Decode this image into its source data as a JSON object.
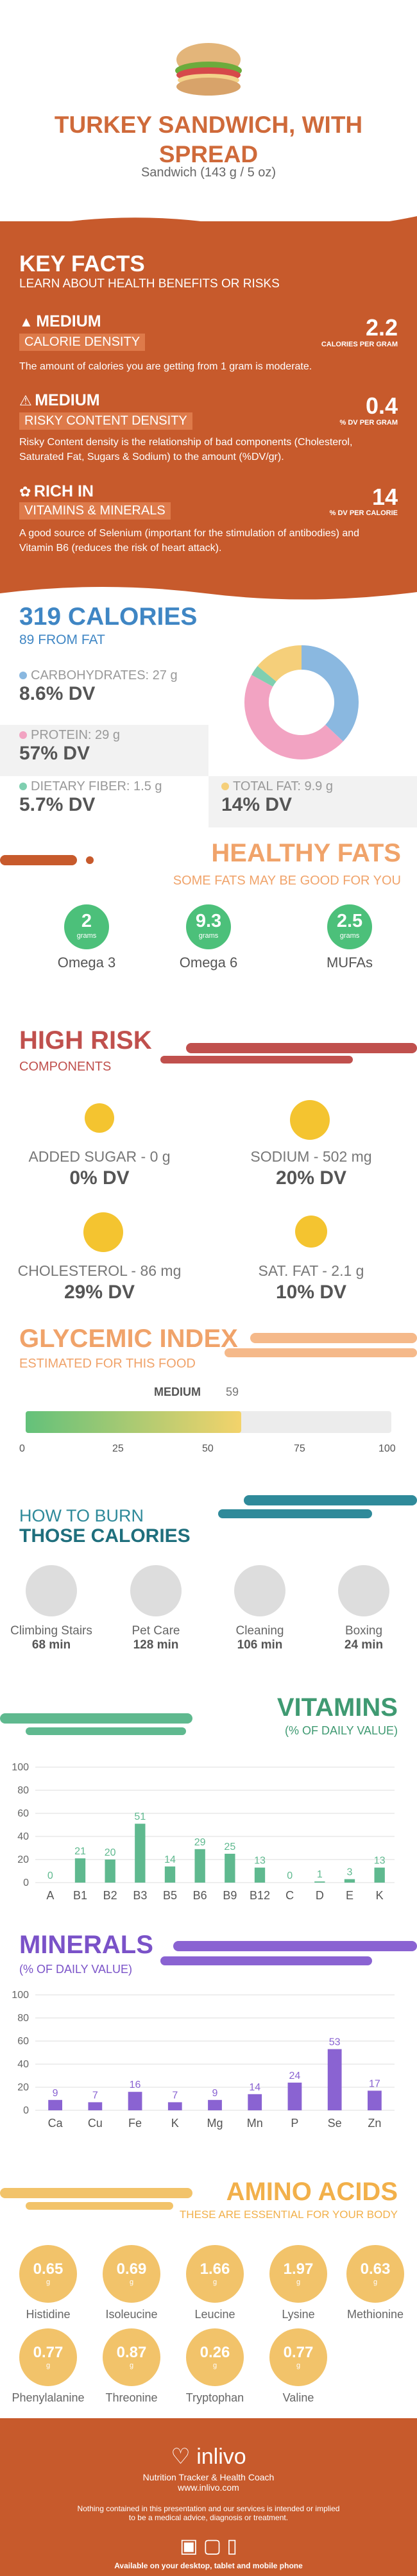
{
  "hero": {
    "title_line1": "TURKEY SANDWICH, WITH",
    "title_line2": "SPREAD",
    "serving": "Sandwich (143 g / 5 oz)"
  },
  "key_facts": {
    "title": "KEY FACTS",
    "subtitle": "LEARN ABOUT HEALTH BENEFITS OR RISKS",
    "items": [
      {
        "level": "MEDIUM",
        "label": "CALORIE DENSITY",
        "value": "2.2",
        "unit": "CALORIES PER GRAM",
        "desc": "The amount of calories you are getting from 1 gram is moderate."
      },
      {
        "level": "MEDIUM",
        "label": "RISKY CONTENT DENSITY",
        "value": "0.4",
        "unit": "% DV PER GRAM",
        "desc": "Risky Content density is the relationship of bad components (Cholesterol, Saturated Fat, Sugars & Sodium) to the amount (%DV/gr)."
      },
      {
        "level": "RICH  IN",
        "label": "VITAMINS & MINERALS",
        "value": "14",
        "unit": "% DV PER CALORIE",
        "desc": "A good source of Selenium (important for the stimulation of antibodies) and Vitamin B6 (reduces the risk of heart attack)."
      }
    ]
  },
  "calories": {
    "title": "319 CALORIES",
    "subtitle": "89 FROM FAT",
    "carbs": {
      "label": "CARBOHYDRATES: 27 g",
      "dv": "8.6% DV",
      "color": "#8ab8e0"
    },
    "protein": {
      "label": "PROTEIN: 29 g",
      "dv": "57% DV",
      "color": "#f2a3c2"
    },
    "fiber": {
      "label": "DIETARY FIBER: 1.5 g",
      "dv": "5.7% DV",
      "color": "#7fcfb0"
    },
    "fat": {
      "label": "TOTAL FAT: 9.9 g",
      "dv": "14% DV",
      "color": "#f5cf7a"
    },
    "donut": [
      {
        "name": "carbs",
        "value": 37,
        "color": "#8ab8e0"
      },
      {
        "name": "protein",
        "value": 46,
        "color": "#f2a3c2"
      },
      {
        "name": "fiber",
        "value": 3,
        "color": "#7fcfb0"
      },
      {
        "name": "fat",
        "value": 14,
        "color": "#f5cf7a"
      }
    ]
  },
  "healthy_fats": {
    "title": "HEALTHY FATS",
    "subtitle": "SOME FATS MAY BE GOOD FOR YOU",
    "unit": "grams",
    "items": [
      {
        "value": "2",
        "name": "Omega 3"
      },
      {
        "value": "9.3",
        "name": "Omega 6"
      },
      {
        "value": "2.5",
        "name": "MUFAs"
      }
    ]
  },
  "high_risk": {
    "title": "HIGH RISK",
    "subtitle": "COMPONENTS",
    "items": [
      {
        "label": "ADDED SUGAR - 0 g",
        "dv": "0% DV"
      },
      {
        "label": "SODIUM - 502 mg",
        "dv": "20% DV"
      },
      {
        "label": "CHOLESTEROL - 86 mg",
        "dv": "29% DV"
      },
      {
        "label": "SAT. FAT - 2.1 g",
        "dv": "10% DV"
      }
    ]
  },
  "glycemic": {
    "title": "GLYCEMIC INDEX",
    "subtitle": "ESTIMATED FOR THIS FOOD",
    "level": "MEDIUM",
    "value": 59,
    "ticks": [
      "0",
      "25",
      "50",
      "75",
      "100"
    ]
  },
  "burn": {
    "title_line1": "HOW TO BURN",
    "title_line2": "THOSE CALORIES",
    "items": [
      {
        "name": "Climbing Stairs",
        "minutes": "68 min"
      },
      {
        "name": "Pet Care",
        "minutes": "128 min"
      },
      {
        "name": "Cleaning",
        "minutes": "106 min"
      },
      {
        "name": "Boxing",
        "minutes": "24 min"
      }
    ]
  },
  "vitamins": {
    "title": "VITAMINS",
    "subtitle": "(% OF DAILY VALUE)",
    "chart_data": {
      "type": "bar",
      "categories": [
        "A",
        "B1",
        "B2",
        "B3",
        "B5",
        "B6",
        "B9",
        "B12",
        "C",
        "D",
        "E",
        "K"
      ],
      "values": [
        0,
        21,
        20,
        51,
        14,
        29,
        25,
        13,
        0,
        1,
        3,
        13
      ],
      "ylim": [
        0,
        100
      ],
      "yticks": [
        "0",
        "20",
        "40",
        "60",
        "80",
        "100"
      ],
      "color": "#5fb98f"
    }
  },
  "minerals": {
    "title": "MINERALS",
    "subtitle": "(% OF DAILY VALUE)",
    "chart_data": {
      "type": "bar",
      "categories": [
        "Ca",
        "Cu",
        "Fe",
        "K",
        "Mg",
        "Mn",
        "P",
        "Se",
        "Zn"
      ],
      "values": [
        9,
        7,
        16,
        7,
        9,
        14,
        24,
        53,
        17
      ],
      "ylim": [
        0,
        100
      ],
      "yticks": [
        "0",
        "20",
        "40",
        "60",
        "80",
        "100"
      ],
      "color": "#8a63d2"
    }
  },
  "amino": {
    "title": "AMINO ACIDS",
    "subtitle": "THESE ARE ESSENTIAL FOR YOUR BODY",
    "unit": "g",
    "items": [
      {
        "value": "0.65",
        "name": "Histidine"
      },
      {
        "value": "0.69",
        "name": "Isoleucine"
      },
      {
        "value": "1.66",
        "name": "Leucine"
      },
      {
        "value": "1.97",
        "name": "Lysine"
      },
      {
        "value": "0.63",
        "name": "Methionine"
      },
      {
        "value": "0.77",
        "name": "Phenylalanine"
      },
      {
        "value": "0.87",
        "name": "Threonine"
      },
      {
        "value": "0.26",
        "name": "Tryptophan"
      },
      {
        "value": "0.77",
        "name": "Valine"
      }
    ]
  },
  "footer": {
    "brand": "inlivo",
    "tagline": "Nutrition Tracker & Health Coach",
    "url": "www.inlivo.com",
    "disclaimer1": "Nothing contained in this presentation and our services is intended or implied",
    "disclaimer2": "to be a medical advice, diagnosis or treatment.",
    "platforms": "Available on your desktop, tablet and mobile phone"
  }
}
